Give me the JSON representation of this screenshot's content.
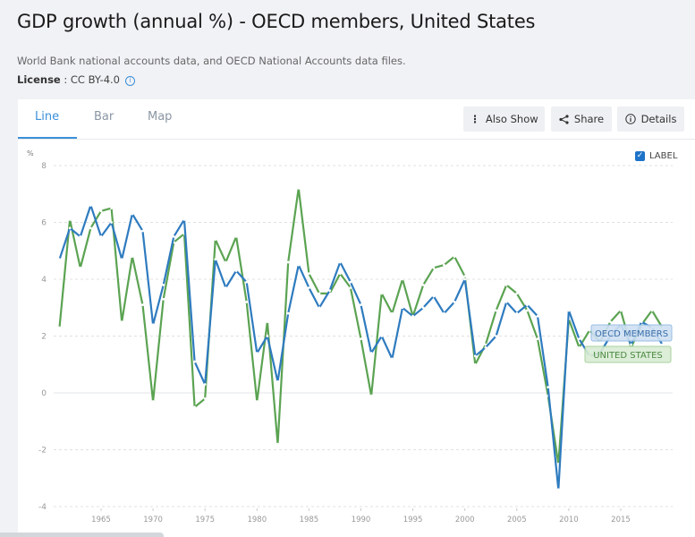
{
  "header": {
    "title": "GDP growth (annual %) - OECD members, United States",
    "source": "World Bank national accounts data, and OECD National Accounts data files.",
    "license_label": "License",
    "license_value": " : CC BY-4.0"
  },
  "tabs": [
    {
      "label": "Line",
      "active": true
    },
    {
      "label": "Bar",
      "active": false
    },
    {
      "label": "Map",
      "active": false
    }
  ],
  "toolbar": {
    "also_show": "Also Show",
    "share": "Share",
    "details": "Details"
  },
  "label_toggle": {
    "label": "LABEL",
    "checked": true
  },
  "colors": {
    "oecd": "#2e7bbf",
    "us": "#5ba352",
    "accent": "#3b8fd8"
  },
  "chart_data": {
    "type": "line",
    "title": "GDP growth (annual %) - OECD members, United States",
    "ylabel": "%",
    "xlabel": "",
    "ylim": [
      -4,
      8
    ],
    "yticks": [
      -4,
      -2,
      0,
      2,
      4,
      6,
      8
    ],
    "xticks": [
      1965,
      1970,
      1975,
      1980,
      1985,
      1990,
      1995,
      2000,
      2005,
      2010,
      2015
    ],
    "grid": true,
    "x": [
      1961,
      1962,
      1963,
      1964,
      1965,
      1966,
      1967,
      1968,
      1969,
      1970,
      1971,
      1972,
      1973,
      1974,
      1975,
      1976,
      1977,
      1978,
      1979,
      1980,
      1981,
      1982,
      1983,
      1984,
      1985,
      1986,
      1987,
      1988,
      1989,
      1990,
      1991,
      1992,
      1993,
      1994,
      1995,
      1996,
      1997,
      1998,
      1999,
      2000,
      2001,
      2002,
      2003,
      2004,
      2005,
      2006,
      2007,
      2008,
      2009,
      2010,
      2011,
      2012,
      2013,
      2014,
      2015,
      2016,
      2017,
      2018,
      2019
    ],
    "series": [
      {
        "name": "OECD MEMBERS",
        "values": [
          4.7,
          5.8,
          5.5,
          6.6,
          5.5,
          6.0,
          4.7,
          6.3,
          5.7,
          2.4,
          3.8,
          5.5,
          6.1,
          1.1,
          0.3,
          4.7,
          3.7,
          4.3,
          3.9,
          1.4,
          2.0,
          0.4,
          2.8,
          4.5,
          3.7,
          3.0,
          3.6,
          4.6,
          3.9,
          3.1,
          1.4,
          2.0,
          1.2,
          3.0,
          2.7,
          3.0,
          3.4,
          2.8,
          3.2,
          4.0,
          1.3,
          1.6,
          2.0,
          3.2,
          2.8,
          3.1,
          2.7,
          0.2,
          -3.4,
          2.9,
          1.9,
          1.3,
          1.4,
          2.0,
          2.4,
          1.7,
          2.5,
          2.3,
          1.7
        ]
      },
      {
        "name": "UNITED STATES",
        "values": [
          2.3,
          6.1,
          4.4,
          5.8,
          6.4,
          6.5,
          2.5,
          4.8,
          3.1,
          -0.3,
          3.3,
          5.3,
          5.6,
          -0.5,
          -0.2,
          5.4,
          4.6,
          5.5,
          3.2,
          -0.3,
          2.5,
          -1.8,
          4.6,
          7.2,
          4.2,
          3.5,
          3.5,
          4.2,
          3.7,
          1.9,
          -0.1,
          3.5,
          2.8,
          4.0,
          2.7,
          3.8,
          4.4,
          4.5,
          4.8,
          4.1,
          1.0,
          1.7,
          2.9,
          3.8,
          3.5,
          2.9,
          1.9,
          -0.1,
          -2.5,
          2.6,
          1.6,
          2.2,
          1.8,
          2.5,
          2.9,
          1.6,
          2.4,
          2.9,
          2.3
        ]
      }
    ],
    "series_labels": [
      "OECD MEMBERS",
      "UNITED STATES"
    ]
  }
}
